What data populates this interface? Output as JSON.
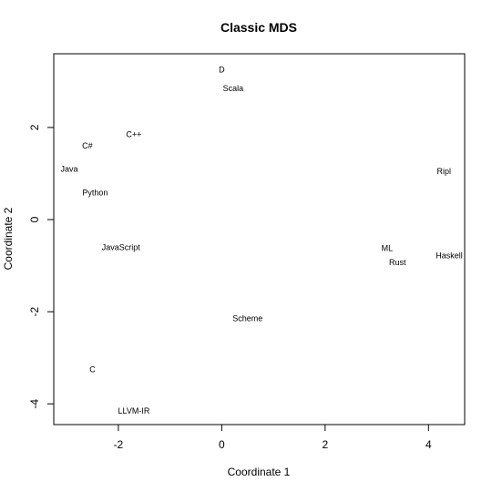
{
  "chart_data": {
    "type": "scatter",
    "title": "Classic MDS",
    "xlabel": "Coordinate 1",
    "ylabel": "Coordinate 2",
    "xlim": [
      -3.25,
      4.7
    ],
    "ylim": [
      -4.45,
      3.6
    ],
    "xticks": [
      "-2",
      "0",
      "2",
      "4"
    ],
    "yticks": [
      "-4",
      "-2",
      "0",
      "2"
    ],
    "points": [
      {
        "label": "D",
        "x": 0.0,
        "y": 3.25
      },
      {
        "label": "Scala",
        "x": 0.22,
        "y": 2.85
      },
      {
        "label": "C++",
        "x": -1.7,
        "y": 1.85
      },
      {
        "label": "C#",
        "x": -2.6,
        "y": 1.6
      },
      {
        "label": "Java",
        "x": -2.95,
        "y": 1.1
      },
      {
        "label": "Python",
        "x": -2.45,
        "y": 0.58
      },
      {
        "label": "JavaScript",
        "x": -1.95,
        "y": -0.6
      },
      {
        "label": "Scheme",
        "x": 0.5,
        "y": -2.15
      },
      {
        "label": "C",
        "x": -2.5,
        "y": -3.25
      },
      {
        "label": "LLVM-IR",
        "x": -1.7,
        "y": -4.15
      },
      {
        "label": "Ripl",
        "x": 4.3,
        "y": 1.05
      },
      {
        "label": "ML",
        "x": 3.2,
        "y": -0.62
      },
      {
        "label": "Rust",
        "x": 3.4,
        "y": -0.93
      },
      {
        "label": "Haskell",
        "x": 4.4,
        "y": -0.78
      }
    ]
  }
}
